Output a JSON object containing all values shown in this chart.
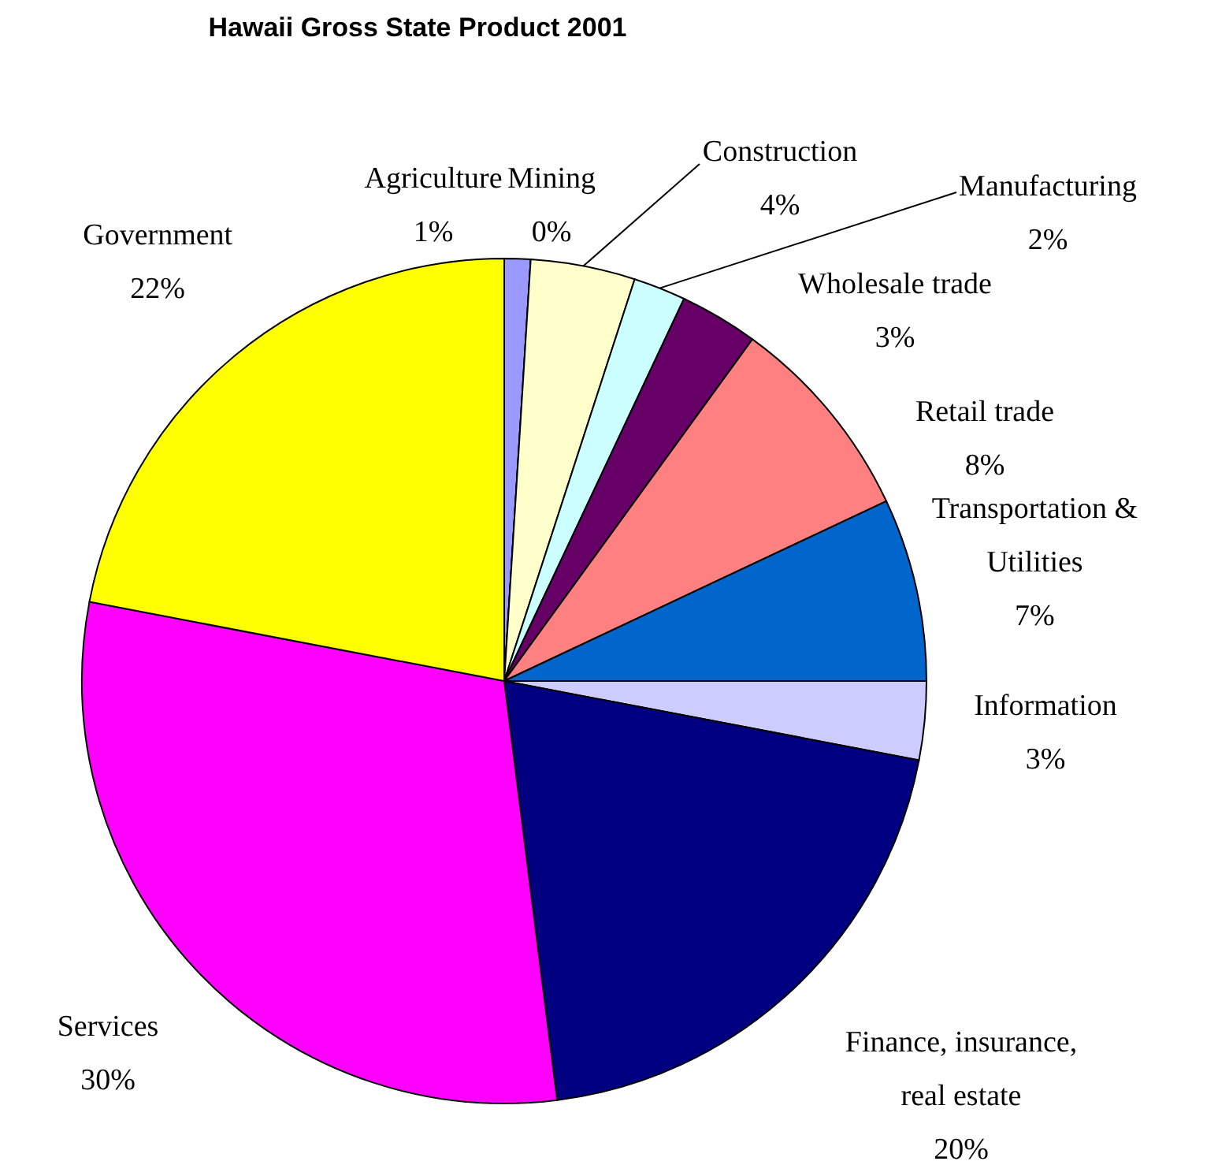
{
  "chart_data": {
    "type": "pie",
    "title": "Hawaii Gross State Product 2001",
    "categories": [
      "Agriculture",
      "Mining",
      "Construction",
      "Manufacturing",
      "Wholesale trade",
      "Retail trade",
      "Transportation & Utilities",
      "Information",
      "Finance, insurance, real estate",
      "Services",
      "Government"
    ],
    "values": [
      1,
      0,
      4,
      2,
      3,
      8,
      7,
      3,
      20,
      30,
      22
    ],
    "value_labels": [
      "1%",
      "0%",
      "4%",
      "2%",
      "3%",
      "8%",
      "7%",
      "3%",
      "20%",
      "30%",
      "22%"
    ],
    "colors": [
      "#9999ff",
      "#993366",
      "#ffffcc",
      "#ccffff",
      "#660066",
      "#ff8080",
      "#0066cc",
      "#ccccff",
      "#000080",
      "#ff00ff",
      "#ffff00"
    ],
    "legend": false
  }
}
